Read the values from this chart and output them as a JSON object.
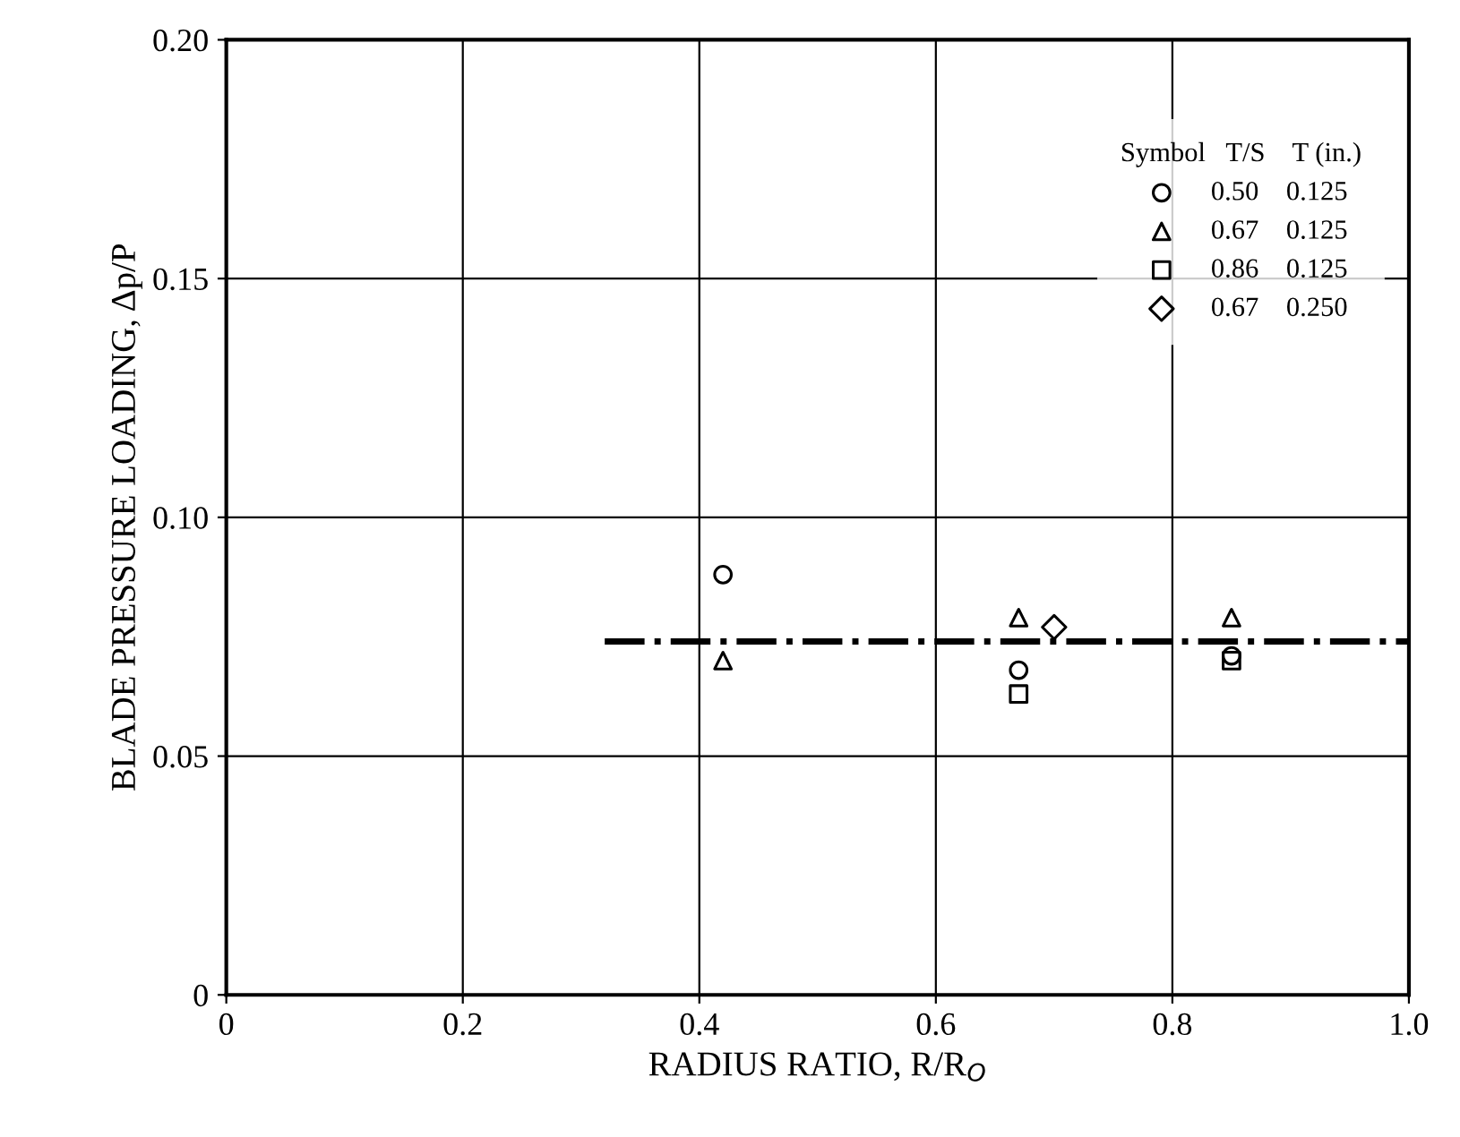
{
  "chart_data": {
    "type": "scatter",
    "xlabel": "RADIUS RATIO, R/R$_{O}$",
    "ylabel": "BLADE PRESSURE LOADING, Δp/P",
    "legend_title": "Symbol   T/S    T (in.)",
    "xlim": [
      0,
      1.0
    ],
    "ylim": [
      0,
      0.2
    ],
    "xticks": [
      0,
      0.2,
      0.4,
      0.6,
      0.8,
      {
        "value": 1,
        "label": "1.0"
      }
    ],
    "yticks": [
      0,
      0.05,
      {
        "value": 0.1,
        "label": "0.10"
      },
      0.15,
      {
        "value": 0.2,
        "label": "0.20"
      }
    ],
    "grid": true,
    "legend": "top right",
    "series": [
      {
        "name": "0.50    0.125",
        "color": "#000000",
        "marker": "circle",
        "x": [
          0.42,
          0.67,
          0.85
        ],
        "values": [
          0.088,
          0.068,
          0.071
        ]
      },
      {
        "name": "0.67    0.125",
        "color": "#000000",
        "marker": "triangle",
        "x": [
          0.42,
          0.67,
          0.85
        ],
        "values": [
          0.07,
          0.079,
          0.079
        ]
      },
      {
        "name": "0.86    0.125",
        "color": "#000000",
        "marker": "square",
        "x": [
          0.67,
          0.85
        ],
        "values": [
          0.063,
          0.07
        ]
      },
      {
        "name": "0.67    0.250",
        "color": "#000000",
        "marker": "diamond",
        "x": [
          0.7
        ],
        "values": [
          0.077
        ]
      },
      {
        "type": "line",
        "color": "#000000",
        "line_style": "dashdot",
        "x": [
          0.32,
          1.0
        ],
        "values": [
          0.074,
          0.074
        ]
      }
    ]
  }
}
